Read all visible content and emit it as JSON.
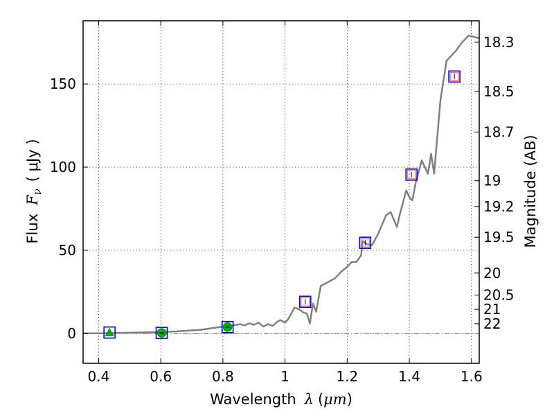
{
  "chart_data": {
    "type": "line",
    "xlabel": "Wavelength",
    "xlabel_symbol": "λ",
    "xlabel_unit_open": "(",
    "xlabel_unit": "μm",
    "xlabel_unit_close": ")",
    "ylabel": "Flux",
    "ylabel_symbol": "F",
    "ylabel_sub": "ν",
    "ylabel_unit": "( μJy )",
    "y2label": "Magnitude (AB)",
    "xlim": [
      0.35,
      1.625
    ],
    "ylim": [
      -18,
      188
    ],
    "xticks": [
      0.4,
      0.6,
      0.8,
      1,
      1.2,
      1.4,
      1.6
    ],
    "xtick_labels": [
      "0.4",
      "0.6",
      "0.8",
      "1",
      "1.2",
      "1.4",
      "1.6"
    ],
    "yticks": [
      0,
      50,
      100,
      150
    ],
    "ytick_labels": [
      "0",
      "50",
      "100",
      "150"
    ],
    "y2ticks": [
      {
        "label": "18.3",
        "flux": 175.1
      },
      {
        "label": "18.5",
        "flux": 145.5
      },
      {
        "label": "18.7",
        "flux": 121.1
      },
      {
        "label": "19",
        "flux": 91.8
      },
      {
        "label": "19.2",
        "flux": 76.3
      },
      {
        "label": "19.5",
        "flux": 57.8
      },
      {
        "label": "20",
        "flux": 36.3
      },
      {
        "label": "20.5",
        "flux": 23.0
      },
      {
        "label": "21",
        "flux": 14.5
      },
      {
        "label": "22",
        "flux": 5.8
      }
    ],
    "grid": true,
    "zero_line": true,
    "colors": {
      "model": "#808080",
      "box": "#0000ff",
      "inner_box": "#ff6666",
      "green": "#00b000",
      "zero_line": "#555555"
    },
    "model_spectrum": {
      "x": [
        0.35,
        0.4,
        0.45,
        0.5,
        0.55,
        0.6,
        0.65,
        0.7,
        0.73,
        0.76,
        0.78,
        0.8,
        0.82,
        0.84,
        0.855,
        0.87,
        0.885,
        0.9,
        0.915,
        0.93,
        0.945,
        0.96,
        0.975,
        0.985,
        1.0,
        1.01,
        1.03,
        1.045,
        1.06,
        1.07,
        1.08,
        1.09,
        1.1,
        1.115,
        1.13,
        1.16,
        1.18,
        1.2,
        1.215,
        1.23,
        1.245,
        1.25,
        1.265,
        1.28,
        1.3,
        1.325,
        1.34,
        1.36,
        1.37,
        1.38,
        1.39,
        1.4,
        1.41,
        1.42,
        1.44,
        1.46,
        1.47,
        1.48,
        1.49,
        1.5,
        1.51,
        1.52,
        1.53,
        1.55,
        1.57,
        1.59,
        1.605,
        1.625
      ],
      "y": [
        0,
        0,
        0.2,
        0.4,
        0.6,
        0.8,
        1.2,
        1.8,
        2.2,
        3.0,
        3.5,
        4.0,
        4.5,
        5.0,
        5.5,
        4.8,
        6.0,
        5.2,
        6.5,
        4.0,
        5.5,
        4.5,
        7.0,
        8.0,
        6.5,
        8.5,
        15.5,
        14.5,
        12.5,
        12.0,
        6.0,
        18.0,
        13.0,
        28.5,
        30.0,
        33.0,
        37.0,
        40.0,
        43.0,
        43.0,
        47.0,
        55.5,
        53.5,
        53.0,
        60.0,
        71.0,
        73.0,
        64.0,
        72.0,
        79.0,
        86.0,
        82.0,
        80.0,
        90.0,
        104.0,
        96.0,
        108.0,
        96.0,
        118.0,
        140.0,
        152.0,
        164.0,
        166.0,
        170.0,
        175.0,
        179.0,
        178.5,
        177.5
      ]
    },
    "photometry": [
      {
        "x": 0.435,
        "y": 0.5,
        "marker": "triangle"
      },
      {
        "x": 0.603,
        "y": 0.3,
        "marker": "circle"
      },
      {
        "x": 0.815,
        "y": 3.8,
        "marker": "circle"
      },
      {
        "x": 1.065,
        "y": 19.0,
        "marker": "square"
      },
      {
        "x": 1.258,
        "y": 54.5,
        "marker": "square"
      },
      {
        "x": 1.407,
        "y": 95.5,
        "marker": "square"
      },
      {
        "x": 1.545,
        "y": 154.5,
        "marker": "square"
      }
    ]
  }
}
